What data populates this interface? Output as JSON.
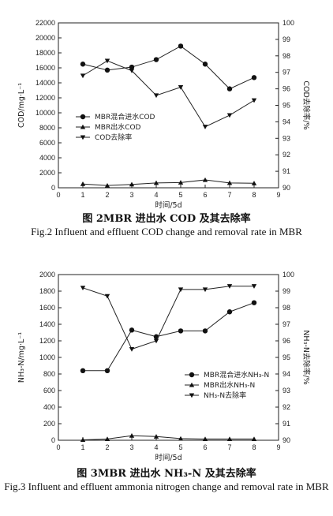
{
  "chart_data": [
    {
      "type": "line",
      "xlabel": "时间/5d",
      "ylabel": "COD/mg·L⁻¹",
      "y2label": "COD去除率/%",
      "xlim": [
        0,
        9
      ],
      "ylim": [
        0,
        22000
      ],
      "y2lim": [
        90,
        100
      ],
      "x_ticks": [
        "0",
        "1",
        "2",
        "3",
        "4",
        "5",
        "6",
        "7",
        "8",
        "9"
      ],
      "y_ticks": [
        "0",
        "2000",
        "4000",
        "6000",
        "8000",
        "10000",
        "12000",
        "14000",
        "16000",
        "18000",
        "20000",
        "22000"
      ],
      "y2_ticks": [
        "90",
        "91",
        "92",
        "93",
        "94",
        "95",
        "96",
        "97",
        "98",
        "99",
        "100"
      ],
      "x": [
        1,
        2,
        3,
        4,
        5,
        6,
        7,
        8
      ],
      "series": [
        {
          "name": "MBR混合进水COD",
          "axis": "left",
          "marker": "circle",
          "values": [
            16500,
            15700,
            16100,
            17100,
            18900,
            16500,
            13200,
            14700
          ]
        },
        {
          "name": "MBR出水COD",
          "axis": "left",
          "marker": "triangle-up",
          "values": [
            500,
            300,
            450,
            650,
            700,
            1050,
            650,
            600
          ]
        },
        {
          "name": "COD去除率",
          "axis": "right",
          "marker": "triangle-down",
          "values": [
            96.8,
            97.7,
            97.1,
            95.6,
            96.1,
            93.7,
            94.4,
            95.3
          ]
        }
      ],
      "legend_position": "center-left",
      "grid": false,
      "caption_cn": "图 2MBR 进出水 COD 及其去除率",
      "caption_en": "Fig.2    Influent and effluent COD change and removal rate in MBR"
    },
    {
      "type": "line",
      "xlabel": "时间/5d",
      "ylabel": "NH₃-N/mg·L⁻¹",
      "y2label": "NH₃-N去除率/%",
      "xlim": [
        0,
        9
      ],
      "ylim": [
        0,
        2000
      ],
      "y2lim": [
        90,
        100
      ],
      "x_ticks": [
        "0",
        "1",
        "2",
        "3",
        "4",
        "5",
        "6",
        "7",
        "8",
        "9"
      ],
      "y_ticks": [
        "0",
        "200",
        "400",
        "600",
        "800",
        "1000",
        "1200",
        "1400",
        "1600",
        "1800",
        "2000"
      ],
      "y2_ticks": [
        "90",
        "91",
        "92",
        "93",
        "94",
        "95",
        "96",
        "97",
        "98",
        "99",
        "100"
      ],
      "x": [
        1,
        2,
        3,
        4,
        5,
        6,
        7,
        8
      ],
      "series": [
        {
          "name": "MBR混合进水NH₃-N",
          "axis": "left",
          "marker": "circle",
          "values": [
            840,
            840,
            1330,
            1250,
            1320,
            1320,
            1550,
            1660
          ]
        },
        {
          "name": "MBR出水NH₃-N",
          "axis": "left",
          "marker": "triangle-up",
          "values": [
            5,
            15,
            55,
            45,
            20,
            15,
            15,
            15
          ]
        },
        {
          "name": "NH₃-N去除率",
          "axis": "right",
          "marker": "triangle-down",
          "values": [
            99.2,
            98.7,
            95.5,
            96.0,
            99.1,
            99.1,
            99.3,
            99.3
          ]
        }
      ],
      "legend_position": "center-right",
      "grid": false,
      "caption_cn": "图 3MBR 进出水 NH₃-N 及其去除率",
      "caption_en": "Fig.3    Influent and effluent ammonia nitrogen change and removal rate in MBR"
    }
  ]
}
